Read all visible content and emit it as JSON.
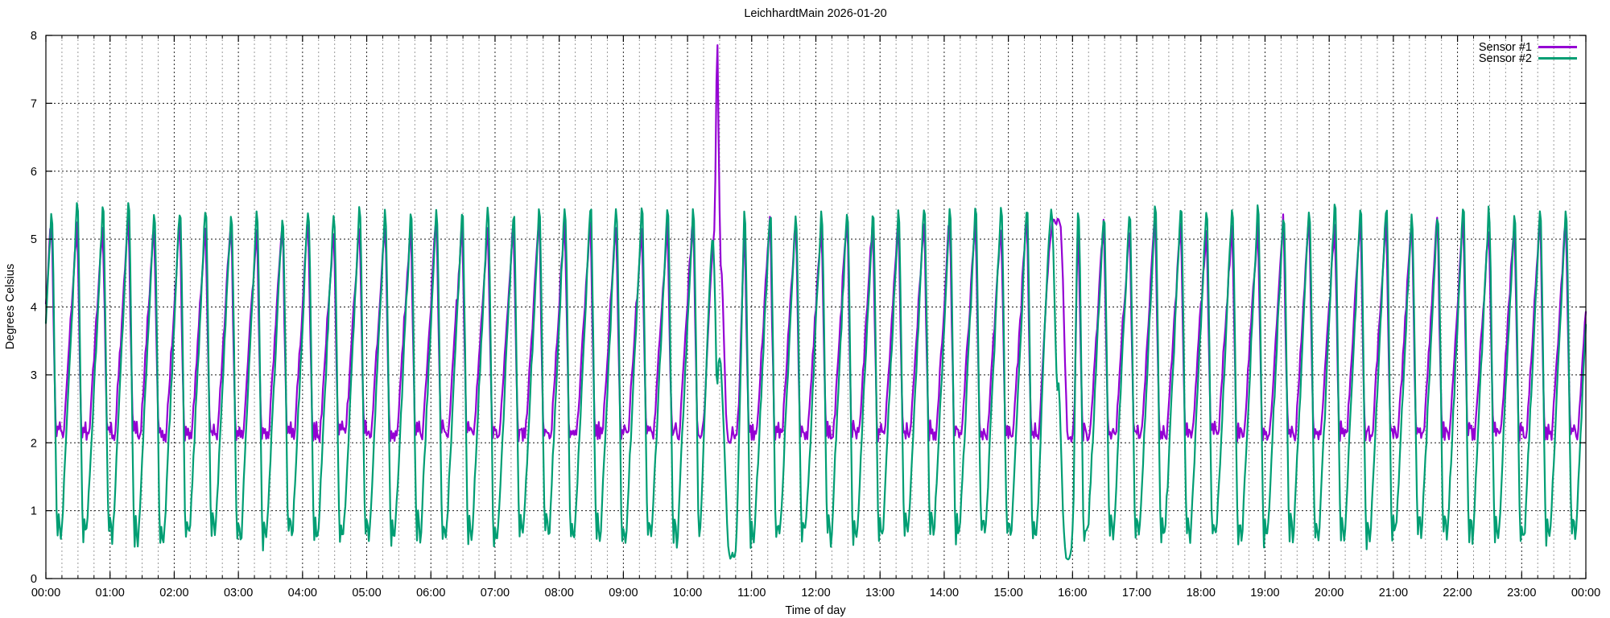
{
  "window": {
    "title": "LeichhardtMain 2026-01-20"
  },
  "chart_data": {
    "type": "line",
    "title": "LeichhardtMain 2026-01-20",
    "xlabel": "Time of day",
    "ylabel": "Degrees Celsius",
    "x_range_hours": [
      0,
      24
    ],
    "ylim": [
      0,
      8
    ],
    "x_tick_labels": [
      "00:00",
      "01:00",
      "02:00",
      "03:00",
      "04:00",
      "05:00",
      "06:00",
      "07:00",
      "08:00",
      "09:00",
      "10:00",
      "11:00",
      "12:00",
      "13:00",
      "14:00",
      "15:00",
      "16:00",
      "17:00",
      "18:00",
      "19:00",
      "20:00",
      "21:00",
      "22:00",
      "23:00",
      "00:00"
    ],
    "y_tick_labels": [
      "0",
      "1",
      "2",
      "3",
      "4",
      "5",
      "6",
      "7",
      "8"
    ],
    "minor_ticks_per_hour": 3,
    "grid": true,
    "grid_color_major": "#000000",
    "grid_color_minor": "#9a9a9a",
    "legend_position": "top-right-inside",
    "sample_interval_minutes": 1,
    "cycle_period_minutes": 24,
    "cycle_phase_minutes": 10.8,
    "series": [
      {
        "name": "Sensor #1",
        "color": "#9400d3",
        "cycle_min": 2.0,
        "cycle_max": 5.3,
        "jitter": 0.09,
        "peak_variation": 0.22,
        "seed": 1,
        "cycle_shape": [
          [
            0,
            2.25
          ],
          [
            1.2,
            2.05
          ],
          [
            2.2,
            2.2
          ],
          [
            3.0,
            2.05
          ],
          [
            15.7,
            5.25
          ],
          [
            16.6,
            4.9
          ],
          [
            18.3,
            3.4
          ],
          [
            19.8,
            2.35
          ],
          [
            20.6,
            2.05
          ],
          [
            21.5,
            2.3
          ],
          [
            22.5,
            2.1
          ],
          [
            24,
            2.25
          ]
        ]
      },
      {
        "name": "Sensor #2",
        "color": "#009e73",
        "cycle_min": 0.55,
        "cycle_max": 5.5,
        "jitter": 0.09,
        "peak_variation": 0.16,
        "seed": 2,
        "cycle_shape": [
          [
            0,
            0.8
          ],
          [
            0.8,
            0.6
          ],
          [
            1.6,
            0.7
          ],
          [
            16.1,
            5.5
          ],
          [
            16.8,
            5.3
          ],
          [
            18.2,
            4.1
          ],
          [
            19.6,
            2.3
          ],
          [
            21.1,
            0.75
          ],
          [
            21.9,
            0.55
          ],
          [
            22.7,
            0.9
          ],
          [
            23.4,
            0.6
          ],
          [
            24,
            0.8
          ]
        ]
      }
    ],
    "anomalies": [
      {
        "series": "Sensor #1",
        "description": "Spike to 8.0 C peaking ~10:28 then deep recovery to ~2.0",
        "points": [
          [
            610,
            2.1
          ],
          [
            612,
            2.05
          ],
          [
            614,
            2.2
          ],
          [
            616,
            2.5
          ],
          [
            618,
            3.2
          ],
          [
            620,
            3.9
          ],
          [
            622,
            4.5
          ],
          [
            624,
            4.95
          ],
          [
            625.5,
            5.2
          ],
          [
            626.5,
            6.6
          ],
          [
            627.5,
            8.0
          ],
          [
            628.3,
            7.75
          ],
          [
            629,
            6.6
          ],
          [
            630,
            5.4
          ],
          [
            631,
            4.6
          ],
          [
            632.5,
            4.4
          ],
          [
            634,
            3.5
          ],
          [
            636,
            2.4
          ],
          [
            637.5,
            2.05
          ],
          [
            640,
            2.0
          ],
          [
            642,
            2.2
          ],
          [
            644,
            2.05
          ],
          [
            646,
            2.15
          ],
          [
            648,
            2.6
          ],
          [
            650,
            3.6
          ],
          [
            651.5,
            4.3
          ],
          [
            653,
            5.19
          ]
        ]
      },
      {
        "series": "Sensor #2",
        "description": "Shallow peak then dip to ~2.9 during sensor-1 spike, deep drop to ~0.3 until ~10:45",
        "points": [
          [
            610,
            0.95
          ],
          [
            611,
            0.6
          ],
          [
            612,
            0.75
          ],
          [
            614,
            1.5
          ],
          [
            616,
            2.4
          ],
          [
            618,
            3.3
          ],
          [
            620,
            4.1
          ],
          [
            622,
            4.75
          ],
          [
            623.5,
            5.05
          ],
          [
            624.5,
            4.9
          ],
          [
            626,
            3.9
          ],
          [
            627,
            3.0
          ],
          [
            628,
            2.85
          ],
          [
            629,
            3.15
          ],
          [
            630.5,
            3.3
          ],
          [
            632,
            2.9
          ],
          [
            633.5,
            2.4
          ],
          [
            635,
            1.7
          ],
          [
            636.5,
            1.0
          ],
          [
            638,
            0.5
          ],
          [
            640,
            0.3
          ],
          [
            642,
            0.35
          ],
          [
            644,
            0.3
          ],
          [
            645.5,
            0.5
          ],
          [
            647,
            1.3
          ],
          [
            648.5,
            2.3
          ],
          [
            650,
            3.3
          ],
          [
            651.5,
            4.4
          ],
          [
            653,
            5.39
          ]
        ]
      },
      {
        "series": "Sensor #1",
        "description": "Extended ~5.3 C plateau 15:41-15:49 then fall to ~2.0 low until ~16:02",
        "points": [
          [
            928,
            2.05
          ],
          [
            930,
            2.5
          ],
          [
            932,
            3.1
          ],
          [
            934,
            3.7
          ],
          [
            936,
            4.3
          ],
          [
            938,
            4.8
          ],
          [
            940,
            5.1
          ],
          [
            941,
            5.25
          ],
          [
            943,
            5.3
          ],
          [
            944.5,
            5.15
          ],
          [
            946,
            5.3
          ],
          [
            947.5,
            5.28
          ],
          [
            949,
            5.2
          ],
          [
            950.5,
            4.7
          ],
          [
            952,
            3.8
          ],
          [
            953.5,
            2.9
          ],
          [
            955,
            2.2
          ],
          [
            956.5,
            2.0
          ],
          [
            958,
            2.1
          ],
          [
            959.5,
            2.0
          ],
          [
            961,
            2.3
          ],
          [
            962,
            2.6
          ],
          [
            963,
            3.5
          ],
          [
            964,
            4.4
          ],
          [
            965,
            5.19
          ]
        ]
      },
      {
        "series": "Sensor #2",
        "description": "Peak ~5.4 at 15:40, stepped fall, deep drop to ~0.3 around 15:54 then recovery",
        "points": [
          [
            928,
            1.1
          ],
          [
            930,
            2.0
          ],
          [
            932,
            2.9
          ],
          [
            934,
            3.7
          ],
          [
            936,
            4.4
          ],
          [
            937.5,
            4.9
          ],
          [
            939,
            5.25
          ],
          [
            940,
            5.4
          ],
          [
            941,
            5.3
          ],
          [
            942.5,
            4.6
          ],
          [
            944,
            3.6
          ],
          [
            945.5,
            2.7
          ],
          [
            947,
            2.9
          ],
          [
            948,
            2.6
          ],
          [
            949.5,
            1.8
          ],
          [
            951,
            1.0
          ],
          [
            952.5,
            0.5
          ],
          [
            954,
            0.33
          ],
          [
            956,
            0.3
          ],
          [
            958,
            0.35
          ],
          [
            959.5,
            0.45
          ],
          [
            961,
            1.2
          ],
          [
            962,
            2.4
          ],
          [
            963,
            3.6
          ],
          [
            964,
            4.6
          ],
          [
            965,
            5.39
          ]
        ]
      }
    ]
  }
}
